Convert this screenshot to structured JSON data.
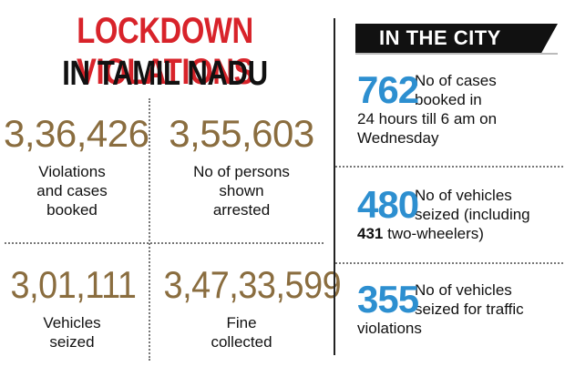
{
  "state": {
    "title_line1": "LOCKDOWN VIOLATIONS",
    "title_line2": "IN TAMIL NADU",
    "stats": [
      {
        "value": "3,36,426",
        "label_lines": [
          "Violations",
          "and cases",
          "booked"
        ]
      },
      {
        "value": "3,55,603",
        "label_lines": [
          "No of persons",
          "shown",
          "arrested"
        ]
      },
      {
        "value": "3,01,111",
        "label_lines": [
          "Vehicles",
          "seized"
        ]
      },
      {
        "value": "3,47,33,599",
        "label_lines": [
          "Fine",
          "collected"
        ]
      }
    ]
  },
  "city": {
    "heading": "IN THE CITY",
    "items": [
      {
        "value": "762",
        "line1": "No of cases",
        "line2": "booked in",
        "line3": "24 hours till 6 am on",
        "line4": "Wednesday"
      },
      {
        "value": "480",
        "line1": "No of vehicles",
        "line2": "seized (including",
        "line3_bold": "431",
        "line3_rest": " two-wheelers)"
      },
      {
        "value": "355",
        "line1": "No of vehicles",
        "line2": "seized for traffic",
        "line3": "violations"
      }
    ]
  },
  "colors": {
    "title_red": "#d8232a",
    "stat_brown": "#8a6d3f",
    "city_blue": "#2d8fd0"
  }
}
